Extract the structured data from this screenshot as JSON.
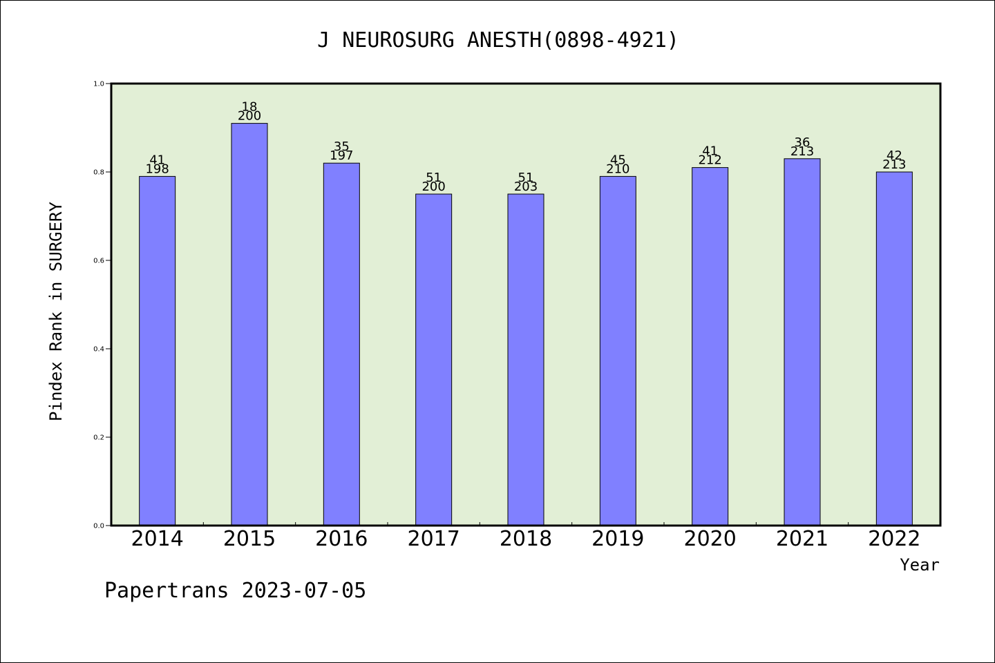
{
  "chart_data": {
    "type": "bar",
    "title": "J NEUROSURG ANESTH(0898-4921)",
    "xlabel": "Year",
    "ylabel": "Pindex Rank in SURGERY",
    "ylim": [
      0,
      1.0
    ],
    "yticks": [
      "0.0",
      "0.2",
      "0.4",
      "0.6",
      "0.8",
      "1.0"
    ],
    "categories": [
      "2014",
      "2015",
      "2016",
      "2017",
      "2018",
      "2019",
      "2020",
      "2021",
      "2022"
    ],
    "values": [
      0.79,
      0.91,
      0.82,
      0.75,
      0.75,
      0.79,
      0.81,
      0.83,
      0.8
    ],
    "rank_labels": [
      "41",
      "18",
      "35",
      "51",
      "51",
      "45",
      "41",
      "36",
      "42"
    ],
    "total_labels": [
      "198",
      "200",
      "197",
      "200",
      "203",
      "210",
      "212",
      "213",
      "213"
    ],
    "grid": false,
    "colors": {
      "plot_background": "#e2efd6",
      "bar_fill": "#8080ff",
      "bar_stroke": "#000000"
    }
  },
  "footer": "Papertrans 2023-07-05"
}
